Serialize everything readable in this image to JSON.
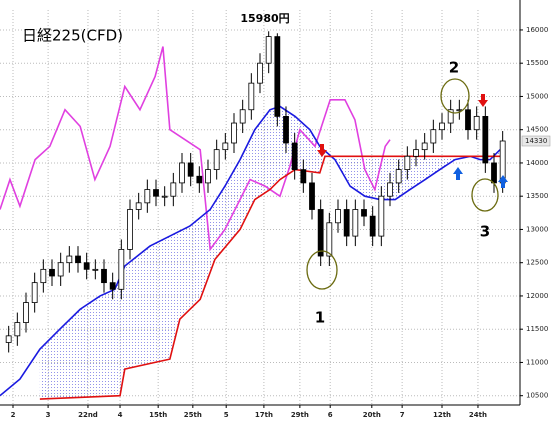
{
  "chart_data": {
    "type": "candlestick",
    "title": "日経225(CFD)",
    "annotations": {
      "high": "15980円",
      "one": "1",
      "two": "2",
      "three": "3"
    },
    "x": [
      2,
      4,
      6,
      8,
      10,
      12,
      14,
      16,
      18,
      20,
      22,
      24,
      26,
      28,
      30,
      32,
      34,
      36,
      38,
      40,
      42,
      44,
      46,
      48,
      50,
      52,
      54,
      56,
      58,
      60,
      62,
      64,
      66,
      68,
      70,
      72,
      74,
      76,
      78,
      80,
      82,
      84,
      86,
      88,
      90,
      92,
      94,
      96,
      98,
      100,
      102,
      104,
      106,
      108,
      110,
      112,
      114,
      116
    ],
    "open": [
      11300,
      11400,
      11600,
      11900,
      12200,
      12400,
      12300,
      12500,
      12600,
      12500,
      12400,
      12400,
      12200,
      12100,
      12700,
      13300,
      13400,
      13600,
      13500,
      13500,
      13700,
      14000,
      13800,
      13700,
      13900,
      14200,
      14300,
      14600,
      14800,
      15200,
      15500,
      15900,
      14700,
      14300,
      13900,
      13700,
      13300,
      12600,
      13100,
      13300,
      12900,
      13300,
      13200,
      12900,
      13500,
      13700,
      13900,
      14100,
      14200,
      14300,
      14500,
      14600,
      14800,
      14800,
      14500,
      14700,
      14000,
      13700
    ],
    "high": [
      11550,
      11750,
      12050,
      12350,
      12550,
      12550,
      12650,
      12750,
      12750,
      12650,
      12550,
      12550,
      12350,
      12850,
      13450,
      13550,
      13750,
      13750,
      13650,
      13850,
      14150,
      14150,
      13950,
      14050,
      14350,
      14450,
      14750,
      14950,
      15350,
      15650,
      15980,
      15950,
      14850,
      14450,
      14050,
      13850,
      13450,
      13250,
      13450,
      13450,
      13450,
      13450,
      13350,
      13650,
      13850,
      14050,
      14250,
      14350,
      14450,
      14650,
      14750,
      14950,
      14950,
      14950,
      14850,
      14850,
      14150,
      14480
    ],
    "low": [
      11150,
      11250,
      11450,
      11750,
      12050,
      12150,
      12150,
      12350,
      12350,
      12250,
      12250,
      12050,
      11950,
      11950,
      12550,
      13150,
      13250,
      13350,
      13350,
      13350,
      13550,
      13650,
      13550,
      13550,
      13750,
      14050,
      14150,
      14450,
      14650,
      15050,
      15350,
      14550,
      14150,
      13750,
      13550,
      13150,
      12450,
      12450,
      12950,
      12750,
      12750,
      13050,
      12750,
      12750,
      13350,
      13550,
      13750,
      13950,
      14050,
      14150,
      14350,
      14450,
      14650,
      14350,
      14350,
      13850,
      13550,
      13550
    ],
    "close": [
      11400,
      11600,
      11900,
      12200,
      12400,
      12300,
      12500,
      12600,
      12500,
      12400,
      12400,
      12200,
      12100,
      12700,
      13300,
      13400,
      13600,
      13500,
      13500,
      13700,
      14000,
      13800,
      13700,
      13900,
      14200,
      14300,
      14600,
      14800,
      15200,
      15500,
      15900,
      14700,
      14300,
      13900,
      13700,
      13300,
      12600,
      13100,
      13300,
      12900,
      13300,
      13200,
      12900,
      13500,
      13700,
      13900,
      14100,
      14200,
      14300,
      14500,
      14600,
      14800,
      14800,
      14500,
      14700,
      14000,
      13700,
      14330
    ],
    "overlays": [
      {
        "color": "#e040e0",
        "x": [
          0,
          2.3,
          4.6,
          8.1,
          11.5,
          15,
          18.5,
          21.9,
          25.4,
          28.8,
          32.3,
          35.8,
          37.6,
          39.2,
          42.7,
          46.2,
          48.5,
          51.9,
          55.4,
          57.7,
          61.2,
          64.6,
          66.9,
          69.2,
          72.7,
          76.2,
          79.6,
          81.9,
          84.2,
          86.5,
          88.9,
          90
        ],
        "values": [
          13300,
          13750,
          13350,
          14050,
          14250,
          14800,
          14550,
          13750,
          14250,
          15150,
          14800,
          15300,
          15750,
          14500,
          14350,
          14200,
          12700,
          13000,
          13450,
          13750,
          13650,
          13500,
          13950,
          14500,
          14250,
          14950,
          14950,
          14650,
          13900,
          13600,
          14250,
          14350
        ]
      },
      {
        "color": "#1a1ae0",
        "x": [
          0,
          4.6,
          9.2,
          13.8,
          18.5,
          23.1,
          26.5,
          28.8,
          34.6,
          39.2,
          43.8,
          48.5,
          51.9,
          55.4,
          58.8,
          62.3,
          64.6,
          68.1,
          71.5,
          73.8,
          77.3,
          80.8,
          84.2,
          87.7,
          91.2,
          94.6,
          98.1,
          101.5,
          105,
          108.5,
          110.8,
          113.1,
          115.4
        ],
        "values": [
          10500,
          10750,
          11200,
          11500,
          11800,
          12000,
          12100,
          12450,
          12750,
          12900,
          13050,
          13300,
          13650,
          14050,
          14500,
          14800,
          14850,
          14700,
          14500,
          14250,
          14050,
          13650,
          13500,
          13450,
          13450,
          13600,
          13750,
          13900,
          14050,
          14100,
          14050,
          14050,
          14200
        ]
      },
      {
        "color": "#e01010",
        "x": [
          9.2,
          27.7,
          28.8,
          39.2,
          41.5,
          46.2,
          49.6,
          55.4,
          58.8,
          62.3,
          64.6,
          68.1,
          73.8,
          75,
          80.8,
          110.8,
          115.4
        ],
        "values": [
          10450,
          10500,
          10900,
          11050,
          11650,
          11950,
          12550,
          13000,
          13450,
          13600,
          13750,
          13900,
          13850,
          14100,
          14100,
          14100,
          14100
        ]
      }
    ],
    "up_color": "#ffffff",
    "down_color": "#000000",
    "cloud_color": "#3a3ad8",
    "xlim": [
      0,
      120
    ],
    "ylim": [
      10360,
      16300
    ],
    "yticks": [
      10500,
      11000,
      11500,
      12000,
      12500,
      13000,
      13500,
      14000,
      14500,
      15000,
      15500,
      16000
    ],
    "xticks": [
      {
        "value": 3,
        "label": "2"
      },
      {
        "value": 11.1,
        "label": "3"
      },
      {
        "value": 20.3,
        "label": "22nd"
      },
      {
        "value": 27.7,
        "label": "4"
      },
      {
        "value": 36.5,
        "label": "15th"
      },
      {
        "value": 44.5,
        "label": "25th"
      },
      {
        "value": 52.2,
        "label": "5"
      },
      {
        "value": 60.9,
        "label": "17th"
      },
      {
        "value": 69.2,
        "label": "29th"
      },
      {
        "value": 76.2,
        "label": "6"
      },
      {
        "value": 85.8,
        "label": "20th"
      },
      {
        "value": 92.8,
        "label": "7"
      },
      {
        "value": 102,
        "label": "12th"
      },
      {
        "value": 110.3,
        "label": "24th"
      }
    ],
    "grid": true
  }
}
